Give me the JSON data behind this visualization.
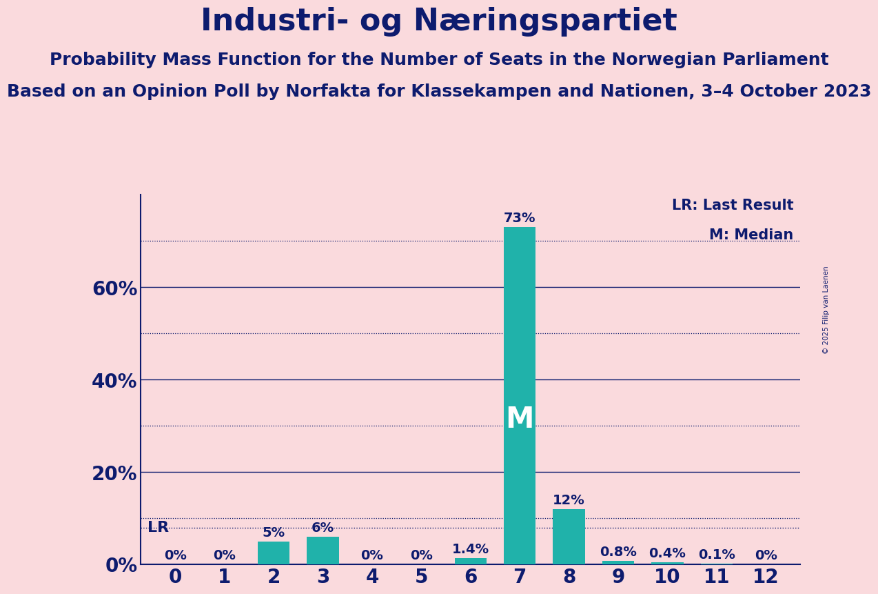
{
  "title": "Industri- og Næringspartiet",
  "subtitle1": "Probability Mass Function for the Number of Seats in the Norwegian Parliament",
  "subtitle2": "Based on an Opinion Poll by Norfakta for Klassekampen and Nationen, 3–4 October 2023",
  "copyright": "© 2025 Filip van Laenen",
  "seats": [
    0,
    1,
    2,
    3,
    4,
    5,
    6,
    7,
    8,
    9,
    10,
    11,
    12
  ],
  "probabilities": [
    0.0,
    0.0,
    5.0,
    6.0,
    0.0,
    0.0,
    1.4,
    73.0,
    12.0,
    0.8,
    0.4,
    0.1,
    0.0
  ],
  "bar_color": "#20B2AA",
  "background_color": "#FADADD",
  "text_color": "#0D1B6E",
  "bar_label_fontsize": 14,
  "title_fontsize": 32,
  "subtitle1_fontsize": 18,
  "subtitle2_fontsize": 18,
  "yticks": [
    0,
    20,
    40,
    60
  ],
  "ylim": [
    0,
    80
  ],
  "lr_value": 8.0,
  "median_seat": 7,
  "legend_lr": "LR: Last Result",
  "legend_m": "M: Median",
  "xlabel_fontsize": 20,
  "ylabel_fontsize": 20,
  "solid_lines": [
    20,
    40,
    60
  ],
  "dotted_lines": [
    10,
    30,
    50,
    70
  ]
}
